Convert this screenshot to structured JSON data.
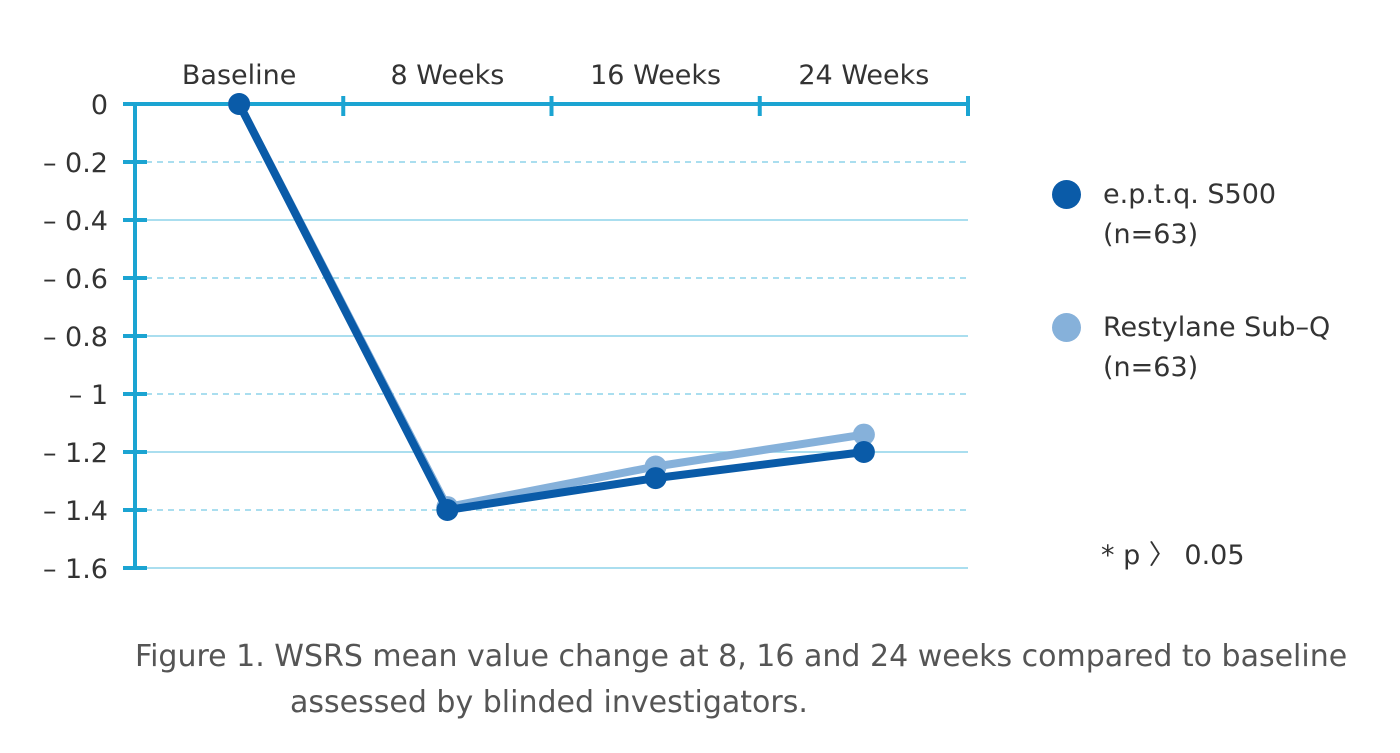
{
  "chart_data": {
    "type": "line",
    "categories": [
      "Baseline",
      "8 Weeks",
      "16 Weeks",
      "24 Weeks"
    ],
    "y_ticks": [
      0,
      -0.2,
      -0.4,
      -0.6,
      -0.8,
      -1,
      -1.2,
      -1.4,
      -1.6
    ],
    "y_tick_labels": [
      "0",
      "– 0.2",
      "– 0.4",
      "– 0.6",
      "– 0.8",
      "– 1",
      "– 1.2",
      "– 1.4",
      "– 1.6"
    ],
    "ylim": [
      -1.6,
      0
    ],
    "x_axis_position": "top",
    "grid": true,
    "legend_position": "right",
    "series": [
      {
        "name": "e.p.t.q. S500",
        "legend_lines": [
          "e.p.t.q. S500",
          "(n=63)"
        ],
        "color": "#0a5ba8",
        "values": [
          0,
          -1.4,
          -1.29,
          -1.2
        ]
      },
      {
        "name": "Restylane Sub-Q",
        "legend_lines": [
          "Restylane Sub–Q",
          "(n=63)"
        ],
        "color": "#86b1da",
        "values": [
          0,
          -1.39,
          -1.25,
          -1.14
        ]
      }
    ],
    "annotation": "* p 〉 0.05",
    "axis_color": "#1ba4d2",
    "grid_color": "#8dd4ea"
  },
  "caption": {
    "line1": "Figure 1. WSRS mean value change at 8, 16 and 24 weeks compared to baseline",
    "line2": "assessed by blinded investigators."
  }
}
